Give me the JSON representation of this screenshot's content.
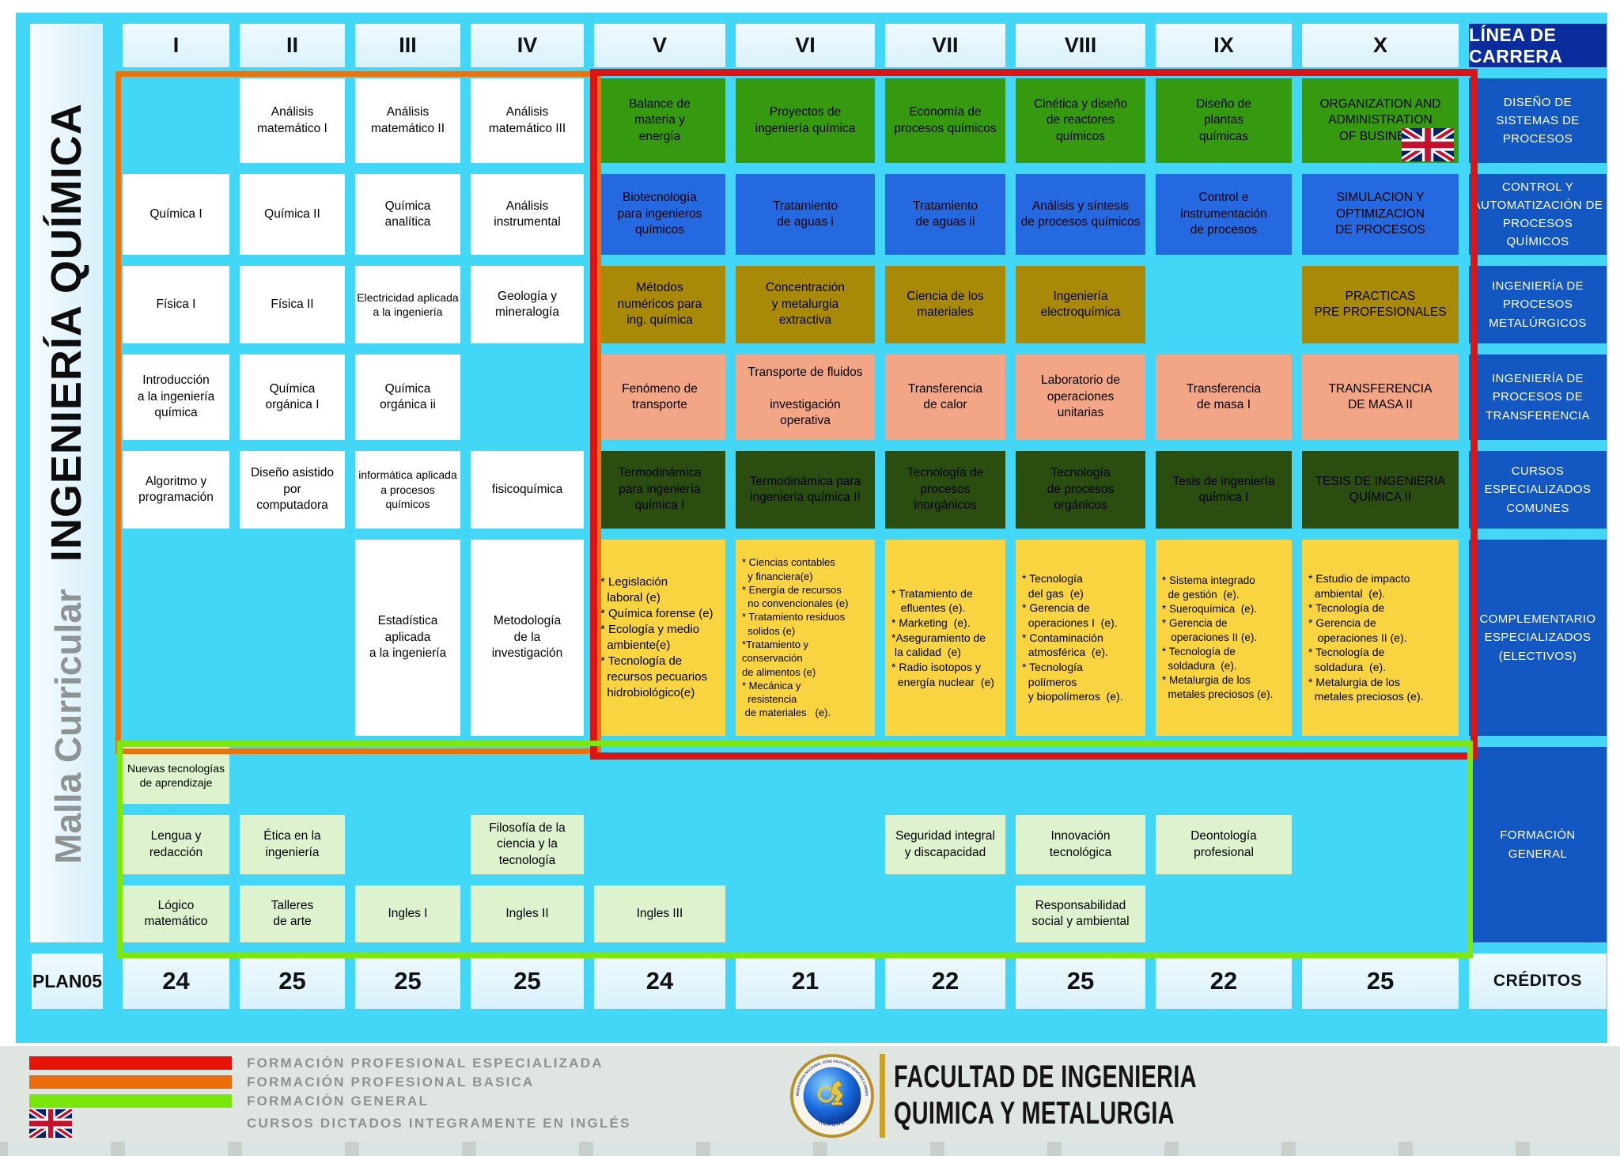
{
  "title": {
    "malla": "Malla Curricular",
    "carrera": "INGENIERÍA QUÍMICA"
  },
  "header": {
    "semesters": [
      "I",
      "II",
      "III",
      "IV",
      "V",
      "VI",
      "VII",
      "VIII",
      "IX",
      "X"
    ],
    "career_line": "LÍNEA DE CARRERA"
  },
  "career_lines": [
    "DISEÑO DE\nSISTEMAS DE\nPROCESOS",
    "CONTROL Y\nAUTOMATIZACIÓN DE\nPROCESOS QUÍMICOS",
    "INGENIERÍA DE PROCESOS\nMETALÚRGICOS",
    "INGENIERÍA DE\nPROCESOS DE\nTRANSFERENCIA",
    "CURSOS\nESPECIALIZADOS\nCOMUNES",
    "COMPLEMENTARIO\nESPECIALIZADOS\n(ELECTIVOS)",
    "FORMACIÓN\nGENERAL"
  ],
  "plan": {
    "label": "PLAN05",
    "credits": [
      "24",
      "25",
      "25",
      "25",
      "24",
      "21",
      "22",
      "25",
      "22",
      "25"
    ],
    "credits_label": "CRÉDITOS"
  },
  "courses": [
    {
      "col": 1,
      "row": 2,
      "type": "white",
      "text": "Química I"
    },
    {
      "col": 1,
      "row": 3,
      "type": "white",
      "text": "Física I"
    },
    {
      "col": 1,
      "row": 4,
      "type": "white",
      "text": "Introducción\na la ingeniería\nquímica"
    },
    {
      "col": 1,
      "row": 5,
      "type": "white",
      "text": "Algoritmo y\nprogramación"
    },
    {
      "col": 1,
      "row": 7,
      "type": "lightgreen",
      "size": 14,
      "text": "Nuevas tecnologías\nde aprendizaje"
    },
    {
      "col": 1,
      "row": 8,
      "type": "lightgreen",
      "text": "Lengua y\nredacción"
    },
    {
      "col": 1,
      "row": 9,
      "type": "lightgreen",
      "text": "Lógico\nmatemático"
    },
    {
      "col": 2,
      "row": 1,
      "type": "white",
      "text": "Análisis\nmatemático I"
    },
    {
      "col": 2,
      "row": 2,
      "type": "white",
      "text": "Química II"
    },
    {
      "col": 2,
      "row": 3,
      "type": "white",
      "text": "Física II"
    },
    {
      "col": 2,
      "row": 4,
      "type": "white",
      "text": "Química\norgánica I"
    },
    {
      "col": 2,
      "row": 5,
      "type": "white",
      "text": "Diseño asistido\npor\ncomputadora"
    },
    {
      "col": 2,
      "row": 8,
      "type": "lightgreen",
      "text": "Ética en la\ningeniería"
    },
    {
      "col": 2,
      "row": 9,
      "type": "lightgreen",
      "text": "Talleres\nde arte"
    },
    {
      "col": 3,
      "row": 1,
      "type": "white",
      "text": "Análisis\nmatemático II"
    },
    {
      "col": 3,
      "row": 2,
      "type": "white",
      "text": "Química\nanalítica"
    },
    {
      "col": 3,
      "row": 3,
      "type": "white",
      "size": 14,
      "text": "Electricidad aplicada\na la ingeniería"
    },
    {
      "col": 3,
      "row": 4,
      "type": "white",
      "text": "Química\norgánica ii"
    },
    {
      "col": 3,
      "row": 5,
      "type": "white",
      "size": 14,
      "text": "informática aplicada\na procesos\nquímicos"
    },
    {
      "col": 3,
      "row": 6,
      "type": "white",
      "text": "Estadística\naplicada\na la ingeniería"
    },
    {
      "col": 3,
      "row": 9,
      "type": "lightgreen",
      "text": "Ingles I"
    },
    {
      "col": 4,
      "row": 1,
      "type": "white",
      "text": "Análisis\nmatemático III"
    },
    {
      "col": 4,
      "row": 2,
      "type": "white",
      "text": "Análisis\ninstrumental"
    },
    {
      "col": 4,
      "row": 3,
      "type": "white",
      "text": "Geología y\nmineralogía"
    },
    {
      "col": 4,
      "row": 5,
      "type": "white",
      "text": "fisicoquímica"
    },
    {
      "col": 4,
      "row": 6,
      "type": "white",
      "text": "Metodología\nde la\ninvestigación"
    },
    {
      "col": 4,
      "row": 8,
      "type": "lightgreen",
      "text": "Filosofía de la\nciencia y la\ntecnología"
    },
    {
      "col": 4,
      "row": 9,
      "type": "lightgreen",
      "text": "Ingles II"
    },
    {
      "col": 5,
      "row": 1,
      "type": "green",
      "text": "Balance de\nmateria y\nenergía"
    },
    {
      "col": 5,
      "row": 2,
      "type": "blue",
      "text": "Biotecnología\npara ingenieros\nquímicos"
    },
    {
      "col": 5,
      "row": 3,
      "type": "gold",
      "text": "Métodos\nnuméricos para\ning. química"
    },
    {
      "col": 5,
      "row": 4,
      "type": "salmon",
      "text": "Fenómeno de\ntransporte"
    },
    {
      "col": 5,
      "row": 5,
      "type": "darkgreen",
      "text": "Termodinámica\npara ingeniería\nquímica I"
    },
    {
      "col": 5,
      "row": 6,
      "type": "electives",
      "size": 15,
      "text": "* Legislación\n  laboral (e)\n* Química forense (e)\n* Ecología y medio\n  ambiente(e)\n* Tecnología de\n  recursos pecuarios\n  hidrobiológico(e)"
    },
    {
      "col": 5,
      "row": 9,
      "type": "lightgreen",
      "text": "Ingles III"
    },
    {
      "col": 6,
      "row": 1,
      "type": "green",
      "text": "Proyectos de\ningeniería química"
    },
    {
      "col": 6,
      "row": 2,
      "type": "blue",
      "text": "Tratamiento\nde aguas i"
    },
    {
      "col": 6,
      "row": 3,
      "type": "gold",
      "text": "Concentración\ny metalurgia\nextractiva"
    },
    {
      "col": 6,
      "row": 4,
      "type": "salmon",
      "text": "Transporte de fluidos\n\ninvestigación\noperativa"
    },
    {
      "col": 6,
      "row": 5,
      "type": "darkgreen",
      "text": "Termodinámica para\ningeniería química II"
    },
    {
      "col": 6,
      "row": 6,
      "type": "electives",
      "size": 13,
      "text": "* Ciencias contables\n  y financiera(e)\n* Energía de recursos\n  no convencionales (e)\n* Tratamiento residuos\n  solidos (e)\n*Tratamiento y conservación\nde alimentos (e)\n* Mecánica y\n  resistencia\n de materiales   (e)."
    },
    {
      "col": 7,
      "row": 1,
      "type": "green",
      "text": "Economía de\nprocesos químicos"
    },
    {
      "col": 7,
      "row": 2,
      "type": "blue",
      "text": "Tratamiento\nde aguas ii"
    },
    {
      "col": 7,
      "row": 3,
      "type": "gold",
      "text": "Ciencia de los\nmateriales"
    },
    {
      "col": 7,
      "row": 4,
      "type": "salmon",
      "text": "Transferencia\nde calor"
    },
    {
      "col": 7,
      "row": 5,
      "type": "darkgreen",
      "text": "Tecnología de\nprocesos\ninorgánicos"
    },
    {
      "col": 7,
      "row": 6,
      "type": "electives",
      "size": 14,
      "text": "* Tratamiento de\n   efluentes (e).\n* Marketing  (e).\n*Aseguramiento de\n la calidad  (e)\n* Radio isotopos y\n  energía nuclear  (e)"
    },
    {
      "col": 7,
      "row": 8,
      "type": "lightgreen",
      "text": "Seguridad  integral\ny discapacidad"
    },
    {
      "col": 8,
      "row": 1,
      "type": "green",
      "text": "Cinética y diseño\nde reactores\nquímicos"
    },
    {
      "col": 8,
      "row": 2,
      "type": "blue",
      "text": "Análisis y síntesis\nde procesos químicos"
    },
    {
      "col": 8,
      "row": 3,
      "type": "gold",
      "text": "Ingeniería\nelectroquímica"
    },
    {
      "col": 8,
      "row": 4,
      "type": "salmon",
      "text": "Laboratorio de\noperaciones\nunitarias"
    },
    {
      "col": 8,
      "row": 5,
      "type": "darkgreen",
      "text": "Tecnología\nde procesos\norgánicos"
    },
    {
      "col": 8,
      "row": 6,
      "type": "electives",
      "size": 14,
      "text": "* Tecnología\n  del gas  (e)\n* Gerencia de\n  operaciones I  (e).\n* Contaminación\n  atmosférica  (e).\n* Tecnología\n  polímeros\n  y biopolímeros  (e)."
    },
    {
      "col": 8,
      "row": 8,
      "type": "lightgreen",
      "text": "Innovación\ntecnológica"
    },
    {
      "col": 8,
      "row": 9,
      "type": "lightgreen",
      "text": "Responsabilidad\nsocial y ambiental"
    },
    {
      "col": 9,
      "row": 1,
      "type": "green",
      "text": "Diseño de\nplantas\nquímicas"
    },
    {
      "col": 9,
      "row": 2,
      "type": "blue",
      "text": "Control e\ninstrumentación\nde procesos"
    },
    {
      "col": 9,
      "row": 4,
      "type": "salmon",
      "text": "Transferencia\nde masa I"
    },
    {
      "col": 9,
      "row": 5,
      "type": "darkgreen",
      "text": "Tesis de ingeniería\nquímica I"
    },
    {
      "col": 9,
      "row": 6,
      "type": "electives",
      "size": 13.5,
      "text": "* Sistema integrado\n  de gestión  (e).\n* Sueroquímica  (e).\n* Gerencia de\n   operaciones II (e).\n* Tecnología de\n  soldadura  (e).\n* Metalurgia de los\n  metales preciosos (e)."
    },
    {
      "col": 9,
      "row": 8,
      "type": "lightgreen",
      "text": "Deontología\nprofesional"
    },
    {
      "col": 10,
      "row": 1,
      "type": "green",
      "flag": true,
      "text": "ORGANIZATION AND\nADMINISTRATION\nOF BUSINESS"
    },
    {
      "col": 10,
      "row": 2,
      "type": "blue",
      "text": "SIMULACION Y\nOPTIMIZACION\nDE PROCESOS"
    },
    {
      "col": 10,
      "row": 3,
      "type": "gold",
      "text": "PRACTICAS\nPRE PROFESIONALES"
    },
    {
      "col": 10,
      "row": 4,
      "type": "salmon",
      "text": "TRANSFERENCIA\nDE MASA II"
    },
    {
      "col": 10,
      "row": 5,
      "type": "darkgreen",
      "text": "TESIS DE INGENIERIA\nQUÍMICA II"
    },
    {
      "col": 10,
      "row": 6,
      "type": "electives",
      "size": 14,
      "text": "* Estudio de impacto\n  ambiental  (e).\n* Tecnología de\n* Gerencia de\n   operaciones II (e).\n* Tecnología de\n  soldadura  (e).\n* Metalurgia de los\n  metales preciosos (e)."
    }
  ],
  "legend": {
    "items": [
      {
        "color": "#e81309",
        "label": "FORMACIÓN PROFESIONAL ESPECIALIZADA"
      },
      {
        "color": "#ec6b0b",
        "label": "FORMACIÓN PROFESIONAL BASICA"
      },
      {
        "color": "#78e60a",
        "label": "FORMACIÓN GENERAL"
      }
    ],
    "flag_label": "CURSOS DICTADOS INTEGRAMENTE EN INGLÉS"
  },
  "footer": {
    "line1": "FACULTAD DE INGENIERIA",
    "line2": "QUIMICA Y METALURGIA",
    "logo_ring_text": "UNIVERSIDAD NACIONAL JOSE FAUSTINO SANCHEZ CARRION",
    "logo_city": "HUACHO"
  },
  "colors": {
    "background_cyan": "#42d7f7",
    "specialized_border_red": "#dc1414",
    "basic_border_orange": "#e87410",
    "general_border_green": "#7de70e",
    "career_header_navy": "#0a2c9d",
    "career_line_blue": "#1257c2",
    "green_course": "#359a10",
    "blue_course": "#2569e0",
    "gold_course": "#a98a08",
    "salmon_course": "#f2a685",
    "darkgreen_course": "#2b4d10",
    "electives_yellow": "#f7d440",
    "general_lightgreen": "#ddf2cd"
  }
}
